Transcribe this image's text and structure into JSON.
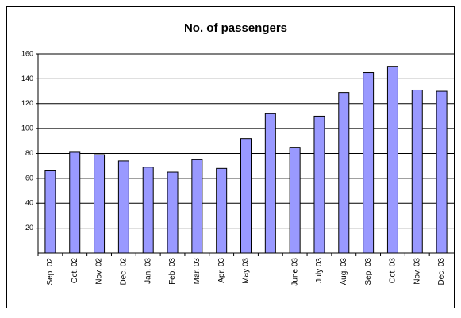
{
  "chart_data": {
    "type": "bar",
    "title": "No. of passengers",
    "categories": [
      "Sep. 02",
      "Oct. 02",
      "Nov. 02",
      "Dec. 02",
      "Jan. 03",
      "Feb. 03",
      "Mar. 03",
      "Apr. 03",
      "May 03",
      null,
      "June 03",
      "July 03",
      "Aug. 03",
      "Sep. 03",
      "Oct. 03",
      "Nov. 03",
      "Dec. 03"
    ],
    "values": [
      66,
      81,
      79,
      74,
      69,
      65,
      75,
      68,
      92,
      112,
      85,
      110,
      129,
      145,
      150,
      131,
      130
    ],
    "color": "#9999ff",
    "ylim": [
      0,
      160
    ],
    "yticks": [
      20,
      40,
      60,
      80,
      100,
      120,
      140,
      160
    ],
    "grid": true
  }
}
